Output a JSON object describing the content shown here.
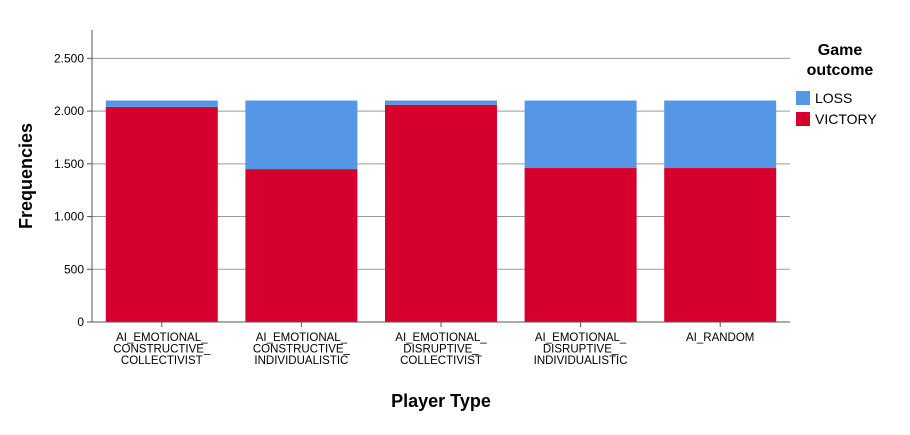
{
  "chart_data": {
    "type": "bar",
    "stacked": true,
    "categories": [
      [
        "AI_EMOTIONAL_",
        "CONSTRUCTIVE_",
        "COLLECTIVIST"
      ],
      [
        "AI_EMOTIONAL_",
        "CONSTRUCTIVE_",
        "INDIVIDUALISTIC"
      ],
      [
        "AI_EMOTIONAL_",
        "DISRUPTIVE_",
        "COLLECTIVIST"
      ],
      [
        "AI_EMOTIONAL_",
        "DISRUPTIVE_",
        "INDIVIDUALISTIC"
      ],
      [
        "AI_RANDOM"
      ]
    ],
    "series": [
      {
        "name": "VICTORY",
        "color": "#d6002f",
        "values": [
          2040,
          1450,
          2060,
          1460,
          1460
        ]
      },
      {
        "name": "LOSS",
        "color": "#5596e6",
        "values": [
          60,
          650,
          40,
          640,
          640
        ]
      }
    ],
    "xlabel": "Player Type",
    "ylabel": "Frequencies",
    "ylim": [
      0,
      2750
    ],
    "yticks": [
      0,
      500,
      1000,
      1500,
      2000,
      2500
    ],
    "ytick_labels": [
      "0",
      "500",
      "1.000",
      "1.500",
      "2.000",
      "2.500"
    ],
    "grid": true,
    "legend": {
      "title": [
        "Game",
        "outcome"
      ],
      "placement": "top-right",
      "items": [
        {
          "name": "LOSS",
          "color": "#5596e6"
        },
        {
          "name": "VICTORY",
          "color": "#d6002f"
        }
      ]
    }
  }
}
